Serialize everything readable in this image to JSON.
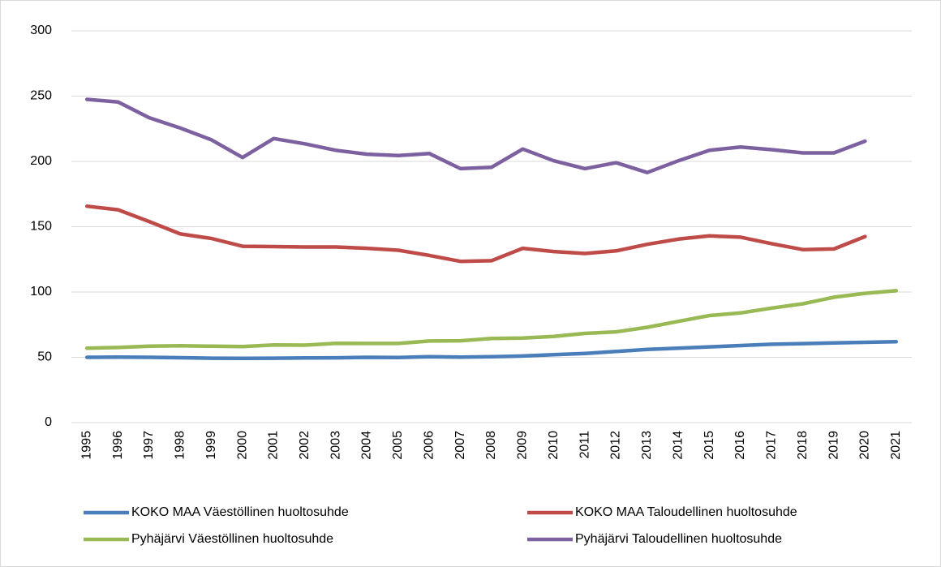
{
  "chart_data": {
    "type": "line",
    "categories": [
      "1995",
      "1996",
      "1997",
      "1998",
      "1999",
      "2000",
      "2001",
      "2002",
      "2003",
      "2004",
      "2005",
      "2006",
      "2007",
      "2008",
      "2009",
      "2010",
      "2011",
      "2012",
      "2013",
      "2014",
      "2015",
      "2016",
      "2017",
      "2018",
      "2019",
      "2020",
      "2021"
    ],
    "series": [
      {
        "name": "KOKO MAA Väestöllinen huoltosuhde",
        "color": "#4a7ebb",
        "values": [
          50,
          50.2,
          50,
          49.7,
          49.3,
          49.2,
          49.3,
          49.5,
          49.6,
          50,
          49.8,
          50.5,
          50.2,
          50.5,
          51,
          52,
          53,
          54.5,
          56,
          57,
          58,
          59,
          60,
          60.5,
          61,
          61.5,
          62
        ]
      },
      {
        "name": "KOKO MAA Taloudellinen huoltosuhde",
        "color": "#be4b48",
        "values": [
          165.7,
          163,
          154,
          144.5,
          141,
          135,
          134.8,
          134.5,
          134.5,
          133.5,
          132,
          128,
          123.5,
          124,
          133.5,
          131,
          129.5,
          131.5,
          136.5,
          140.5,
          143,
          142,
          137,
          132.5,
          133,
          142.5,
          null
        ]
      },
      {
        "name": "Pyhäjärvi Väestöllinen huoltosuhde",
        "color": "#98b954",
        "values": [
          57,
          57.5,
          58.5,
          58.8,
          58.5,
          58.2,
          59.5,
          59.3,
          60.7,
          60.6,
          60.6,
          62.5,
          62.7,
          64.5,
          64.7,
          66,
          68.3,
          69.5,
          73,
          77.5,
          82,
          84,
          87.7,
          91,
          96,
          99,
          101
        ]
      },
      {
        "name": "Pyhäjärvi Taloudellinen huoltosuhde",
        "color": "#7d60a0",
        "values": [
          247.5,
          245.5,
          233.5,
          225.5,
          216.5,
          203,
          217.5,
          213.5,
          208.5,
          205.5,
          204.5,
          206,
          194.5,
          195.5,
          209.5,
          200.5,
          194.5,
          199,
          191.5,
          200.5,
          208.5,
          211,
          209,
          206.5,
          206.5,
          215.5,
          null
        ]
      }
    ],
    "ylim": [
      0,
      300
    ],
    "yticks": [
      0,
      50,
      100,
      150,
      200,
      250,
      300
    ],
    "grid": true,
    "legend": "bottom"
  }
}
